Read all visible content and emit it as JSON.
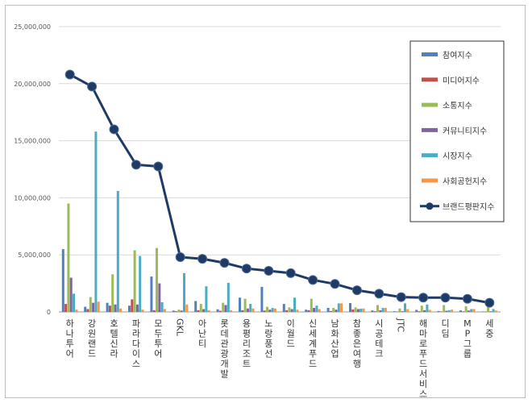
{
  "chart_data": {
    "type": "bar",
    "title": "",
    "xlabel": "",
    "ylabel": "",
    "ylim": [
      0,
      25000000
    ],
    "y_ticks": [
      "0",
      "5,000,000",
      "10,000,000",
      "15,000,000",
      "20,000,000",
      "25,000,000"
    ],
    "y_tick_values": [
      0,
      5000000,
      10000000,
      15000000,
      20000000,
      25000000
    ],
    "grid": "horizontal",
    "legend_position": "right",
    "categories": [
      "하나투어",
      "강원랜드",
      "호텔신라",
      "파라다이스",
      "모두투어",
      "GKL",
      "아난티",
      "롯데관광개발",
      "용평리조트",
      "노랑풍선",
      "이월드",
      "신세계푸드",
      "남화산업",
      "참좋은여행",
      "시공테크",
      "JTC",
      "해마로푸드서비스",
      "디딤",
      "MP그룹",
      "세중"
    ],
    "series": [
      {
        "name": "참여지수",
        "type": "bar",
        "color": "#4f81bd",
        "values": [
          5500000,
          450000,
          800000,
          550000,
          3100000,
          120000,
          950000,
          230000,
          1250000,
          2200000,
          700000,
          200000,
          350000,
          780000,
          130000,
          60000,
          180000,
          80000,
          130000,
          40000
        ]
      },
      {
        "name": "미디어지수",
        "type": "bar",
        "color": "#c0504d",
        "values": [
          700000,
          250000,
          550000,
          1100000,
          150000,
          60000,
          150000,
          100000,
          150000,
          120000,
          150000,
          150000,
          80000,
          220000,
          60000,
          30000,
          60000,
          40000,
          50000,
          25000
        ]
      },
      {
        "name": "소통지수",
        "type": "bar",
        "color": "#9bbb59",
        "values": [
          9500000,
          1300000,
          3300000,
          5400000,
          5600000,
          200000,
          700000,
          800000,
          1150000,
          450000,
          400000,
          1150000,
          350000,
          400000,
          600000,
          300000,
          550000,
          600000,
          500000,
          400000
        ]
      },
      {
        "name": "커뮤니티지수",
        "type": "bar",
        "color": "#8064a2",
        "values": [
          3000000,
          800000,
          650000,
          650000,
          2500000,
          120000,
          250000,
          600000,
          300000,
          200000,
          250000,
          350000,
          200000,
          250000,
          150000,
          60000,
          150000,
          100000,
          120000,
          60000
        ]
      },
      {
        "name": "시장지수",
        "type": "bar",
        "color": "#4bacc6",
        "values": [
          1600000,
          15800000,
          10600000,
          4900000,
          850000,
          3400000,
          2250000,
          2550000,
          700000,
          350000,
          1250000,
          550000,
          750000,
          280000,
          350000,
          750000,
          650000,
          150000,
          250000,
          250000
        ]
      },
      {
        "name": "사회공헌지수",
        "type": "bar",
        "color": "#f79646",
        "values": [
          200000,
          900000,
          300000,
          200000,
          250000,
          650000,
          150000,
          150000,
          300000,
          300000,
          200000,
          250000,
          750000,
          300000,
          350000,
          250000,
          180000,
          200000,
          250000,
          120000
        ]
      },
      {
        "name": "브랜드평판지수",
        "type": "line",
        "color": "#1f3a64",
        "values": [
          20800000,
          19750000,
          16000000,
          12900000,
          12750000,
          4800000,
          4650000,
          4300000,
          3800000,
          3600000,
          3400000,
          2800000,
          2450000,
          1900000,
          1600000,
          1300000,
          1250000,
          1250000,
          1150000,
          800000
        ]
      }
    ]
  }
}
